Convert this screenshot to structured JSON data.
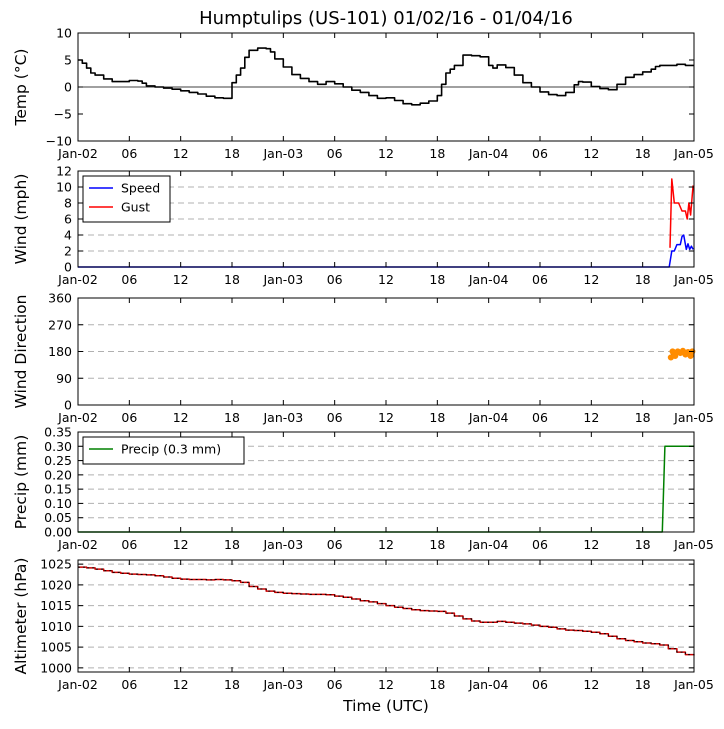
{
  "chart_data": {
    "title": "Humptulips (US-101) 01/02/16 - 01/04/16",
    "xlabel": "Time (UTC)",
    "x_range_hours": [
      0,
      72
    ],
    "x_ticks": [
      {
        "h": 0,
        "label": "Jan-02"
      },
      {
        "h": 6,
        "label": "06"
      },
      {
        "h": 12,
        "label": "12"
      },
      {
        "h": 18,
        "label": "18"
      },
      {
        "h": 24,
        "label": "Jan-03"
      },
      {
        "h": 30,
        "label": "06"
      },
      {
        "h": 36,
        "label": "12"
      },
      {
        "h": 42,
        "label": "18"
      },
      {
        "h": 48,
        "label": "Jan-04"
      },
      {
        "h": 54,
        "label": "06"
      },
      {
        "h": 60,
        "label": "12"
      },
      {
        "h": 66,
        "label": "18"
      },
      {
        "h": 72,
        "label": "Jan-05"
      }
    ],
    "panels": [
      {
        "id": "temp",
        "type": "line",
        "ylabel": "Temp ($^\\circ$C)",
        "ylim": [
          -10,
          10
        ],
        "yticks": [
          "10",
          "5",
          "0",
          "−5",
          "−10"
        ],
        "yticks_values": [
          10,
          5,
          0,
          -5,
          -10
        ],
        "zero_line": true,
        "grid": false,
        "series": [
          {
            "name": "Temp",
            "color": "#000000",
            "points": [
              [
                0,
                5
              ],
              [
                0.5,
                4.4
              ],
              [
                1,
                3.5
              ],
              [
                1.5,
                2.6
              ],
              [
                2,
                2.2
              ],
              [
                3,
                1.5
              ],
              [
                4,
                1
              ],
              [
                5,
                1
              ],
              [
                6,
                1.2
              ],
              [
                7,
                1.1
              ],
              [
                7.5,
                0.7
              ],
              [
                8,
                0.2
              ],
              [
                9,
                0
              ],
              [
                10,
                -0.2
              ],
              [
                11,
                -0.4
              ],
              [
                12,
                -0.7
              ],
              [
                13,
                -1
              ],
              [
                14,
                -1.3
              ],
              [
                15,
                -1.7
              ],
              [
                16,
                -2
              ],
              [
                17,
                -2.1
              ],
              [
                17.5,
                -2.1
              ],
              [
                18,
                0.8
              ],
              [
                18.5,
                2.2
              ],
              [
                19,
                3.5
              ],
              [
                19.5,
                5.5
              ],
              [
                20,
                6.8
              ],
              [
                21,
                7.2
              ],
              [
                22,
                7.1
              ],
              [
                22.5,
                6.5
              ],
              [
                23,
                5.2
              ],
              [
                24,
                3.7
              ],
              [
                25,
                2.3
              ],
              [
                26,
                1.6
              ],
              [
                27,
                1
              ],
              [
                28,
                0.5
              ],
              [
                29,
                1
              ],
              [
                30,
                0.6
              ],
              [
                31,
                0
              ],
              [
                32,
                -0.6
              ],
              [
                33,
                -1
              ],
              [
                34,
                -1.6
              ],
              [
                35,
                -2.1
              ],
              [
                36,
                -2
              ],
              [
                37,
                -2.5
              ],
              [
                38,
                -3.1
              ],
              [
                39,
                -3.3
              ],
              [
                40,
                -3
              ],
              [
                41,
                -2.6
              ],
              [
                42,
                -1.6
              ],
              [
                42.5,
                0.5
              ],
              [
                43,
                2.6
              ],
              [
                43.5,
                3.3
              ],
              [
                44,
                4
              ],
              [
                45,
                5.9
              ],
              [
                46,
                5.8
              ],
              [
                47,
                5.6
              ],
              [
                48,
                4
              ],
              [
                48.5,
                3.5
              ],
              [
                49,
                4.1
              ],
              [
                50,
                3.6
              ],
              [
                51,
                2.2
              ],
              [
                52,
                0.8
              ],
              [
                53,
                0
              ],
              [
                54,
                -0.9
              ],
              [
                55,
                -1.4
              ],
              [
                56,
                -1.6
              ],
              [
                57,
                -1
              ],
              [
                58,
                0.4
              ],
              [
                58.5,
                1
              ],
              [
                59,
                0.9
              ],
              [
                60,
                0.1
              ],
              [
                61,
                -0.3
              ],
              [
                62,
                -0.5
              ],
              [
                63,
                0.5
              ],
              [
                64,
                1.8
              ],
              [
                65,
                2.3
              ],
              [
                66,
                2.8
              ],
              [
                67,
                3.3
              ],
              [
                67.5,
                3.8
              ],
              [
                68,
                4
              ],
              [
                69,
                4
              ],
              [
                70,
                4.2
              ],
              [
                71,
                4
              ],
              [
                72,
                4
              ]
            ]
          }
        ]
      },
      {
        "id": "wind",
        "type": "line",
        "ylabel": "Wind (mph)",
        "ylim": [
          0,
          12
        ],
        "yticks": [
          "12",
          "10",
          "8",
          "6",
          "4",
          "2",
          "0"
        ],
        "yticks_values": [
          12,
          10,
          8,
          6,
          4,
          2,
          0
        ],
        "grid": true,
        "legend": [
          "Speed",
          "Gust"
        ],
        "legend_position": "top-left",
        "series": [
          {
            "name": "Speed",
            "color": "#0000ff",
            "points": [
              [
                0,
                0
              ],
              [
                69.1,
                0
              ],
              [
                69.4,
                2
              ],
              [
                69.7,
                2
              ],
              [
                70,
                2.8
              ],
              [
                70.4,
                2.8
              ],
              [
                70.6,
                3.8
              ],
              [
                70.8,
                4
              ],
              [
                71.1,
                2.2
              ],
              [
                71.3,
                2.9
              ],
              [
                71.5,
                2.2
              ],
              [
                71.7,
                2.6
              ],
              [
                71.9,
                2.2
              ]
            ]
          },
          {
            "name": "Gust",
            "color": "#ff0000",
            "points": [
              [
                69.2,
                2.4
              ],
              [
                69.4,
                11
              ],
              [
                69.7,
                8
              ],
              [
                70.2,
                8
              ],
              [
                70.6,
                7
              ],
              [
                71,
                7
              ],
              [
                71.2,
                6
              ],
              [
                71.4,
                8
              ],
              [
                71.6,
                6.5
              ],
              [
                71.9,
                10.2
              ]
            ]
          }
        ]
      },
      {
        "id": "dir",
        "type": "scatter",
        "ylabel": "Wind Direction",
        "ylim": [
          0,
          360
        ],
        "yticks": [
          "360",
          "270",
          "180",
          "90",
          "0"
        ],
        "yticks_values": [
          360,
          270,
          180,
          90,
          0
        ],
        "grid": true,
        "series": [
          {
            "name": "Direction",
            "color": "#ff8c00",
            "points": [
              [
                69.3,
                160
              ],
              [
                69.5,
                180
              ],
              [
                69.8,
                165
              ],
              [
                70.1,
                180
              ],
              [
                70.4,
                175
              ],
              [
                70.7,
                182
              ],
              [
                71.0,
                170
              ],
              [
                71.3,
                178
              ],
              [
                71.6,
                165
              ],
              [
                71.8,
                180
              ]
            ]
          }
        ]
      },
      {
        "id": "precip",
        "type": "line",
        "ylabel": "Precip (mm)",
        "ylim": [
          0,
          0.35
        ],
        "yticks": [
          "0.35",
          "0.30",
          "0.25",
          "0.20",
          "0.15",
          "0.10",
          "0.05",
          "0.00"
        ],
        "yticks_values": [
          0.35,
          0.3,
          0.25,
          0.2,
          0.15,
          0.1,
          0.05,
          0.0
        ],
        "grid": true,
        "legend": [
          "Precip (0.3 mm)"
        ],
        "legend_position": "top-left",
        "series": [
          {
            "name": "Precip (0.3 mm)",
            "color": "#008000",
            "points": [
              [
                0,
                0
              ],
              [
                68.3,
                0
              ],
              [
                68.6,
                0.3
              ],
              [
                72,
                0.3
              ]
            ]
          }
        ]
      },
      {
        "id": "alt",
        "type": "line",
        "ylabel": "Altimeter (hPa)",
        "ylim": [
          999,
          1026
        ],
        "yticks": [
          "1025",
          "1020",
          "1015",
          "1010",
          "1005",
          "1000"
        ],
        "yticks_values": [
          1025,
          1020,
          1015,
          1010,
          1005,
          1000
        ],
        "grid": true,
        "series": [
          {
            "name": "Altimeter",
            "color": "#cc0000",
            "points": [
              [
                0,
                1024.3
              ],
              [
                1,
                1024.1
              ],
              [
                2,
                1023.8
              ],
              [
                3,
                1023.4
              ],
              [
                4,
                1023
              ],
              [
                5,
                1022.8
              ],
              [
                6,
                1022.6
              ],
              [
                7,
                1022.5
              ],
              [
                8,
                1022.4
              ],
              [
                9,
                1022.2
              ],
              [
                10,
                1021.9
              ],
              [
                11,
                1021.6
              ],
              [
                12,
                1021.4
              ],
              [
                13,
                1021.3
              ],
              [
                14,
                1021.3
              ],
              [
                15,
                1021.2
              ],
              [
                16,
                1021.3
              ],
              [
                17,
                1021.2
              ],
              [
                18,
                1021
              ],
              [
                19,
                1020.6
              ],
              [
                20,
                1019.6
              ],
              [
                21,
                1019
              ],
              [
                22,
                1018.5
              ],
              [
                23,
                1018.2
              ],
              [
                24,
                1018
              ],
              [
                25,
                1017.9
              ],
              [
                26,
                1017.8
              ],
              [
                27,
                1017.7
              ],
              [
                28,
                1017.7
              ],
              [
                29,
                1017.6
              ],
              [
                30,
                1017.3
              ],
              [
                31,
                1017
              ],
              [
                32,
                1016.6
              ],
              [
                33,
                1016.2
              ],
              [
                34,
                1015.9
              ],
              [
                35,
                1015.5
              ],
              [
                36,
                1015
              ],
              [
                37,
                1014.6
              ],
              [
                38,
                1014.3
              ],
              [
                39,
                1014
              ],
              [
                40,
                1013.8
              ],
              [
                41,
                1013.7
              ],
              [
                42,
                1013.6
              ],
              [
                43,
                1013.2
              ],
              [
                44,
                1012.5
              ],
              [
                45,
                1011.8
              ],
              [
                46,
                1011.3
              ],
              [
                47,
                1011
              ],
              [
                48,
                1011
              ],
              [
                49,
                1011.2
              ],
              [
                50,
                1011
              ],
              [
                51,
                1010.8
              ],
              [
                52,
                1010.6
              ],
              [
                53,
                1010.3
              ],
              [
                54,
                1010
              ],
              [
                55,
                1009.8
              ],
              [
                56,
                1009.4
              ],
              [
                57,
                1009.1
              ],
              [
                58,
                1009
              ],
              [
                59,
                1008.8
              ],
              [
                60,
                1008.6
              ],
              [
                61,
                1008.2
              ],
              [
                62,
                1007.6
              ],
              [
                63,
                1007
              ],
              [
                64,
                1006.6
              ],
              [
                65,
                1006.3
              ],
              [
                66,
                1006
              ],
              [
                67,
                1005.8
              ],
              [
                68,
                1005.5
              ],
              [
                69,
                1004.6
              ],
              [
                70,
                1003.8
              ],
              [
                71,
                1003.2
              ],
              [
                72,
                1003
              ]
            ]
          }
        ]
      }
    ]
  }
}
